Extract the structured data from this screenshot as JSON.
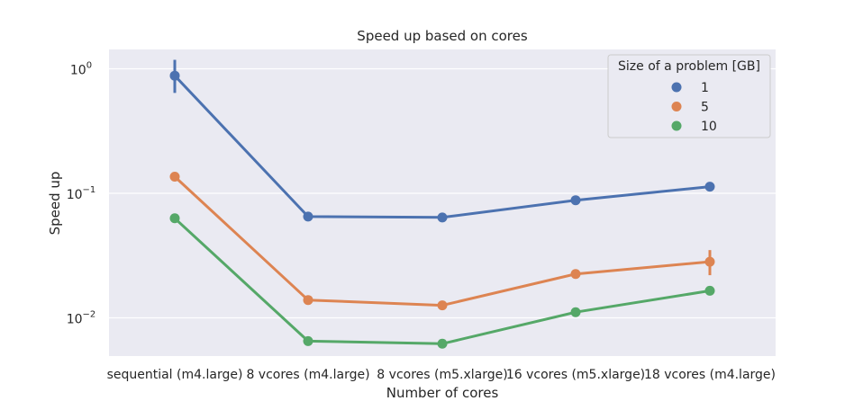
{
  "chart_data": {
    "type": "line",
    "title": "Speed up based on cores",
    "xlabel": "Number of cores",
    "ylabel": "Speed up",
    "yscale": "log",
    "ylim": [
      0.005,
      1.6
    ],
    "ytick_labels": [
      {
        "value": 1,
        "base": "10",
        "exp": "0"
      },
      {
        "value": 0.1,
        "base": "10",
        "exp": "−1"
      },
      {
        "value": 0.01,
        "base": "10",
        "exp": "−2"
      }
    ],
    "categories": [
      "sequential (m4.large)",
      "8 vcores (m4.large)",
      "8 vcores (m5.xlarge)",
      "16 vcores (m5.xlarge)",
      "18 vcores (m4.large)"
    ],
    "grid": true,
    "legend": {
      "title": "Size of a problem [GB]",
      "position": "top-right"
    },
    "series": [
      {
        "name": "1",
        "color": "#4c72b0",
        "values": [
          0.88,
          0.065,
          0.064,
          0.088,
          0.113
        ],
        "errors": [
          [
            0.64,
            1.18
          ],
          null,
          null,
          null,
          null
        ]
      },
      {
        "name": "5",
        "color": "#dd8452",
        "values": [
          0.136,
          0.0139,
          0.0126,
          0.0225,
          0.0282
        ],
        "errors": [
          null,
          null,
          null,
          null,
          [
            0.022,
            0.035
          ]
        ]
      },
      {
        "name": "10",
        "color": "#55a868",
        "values": [
          0.063,
          0.0065,
          0.0062,
          0.0111,
          0.0165
        ],
        "errors": [
          null,
          null,
          null,
          null,
          null
        ]
      }
    ]
  }
}
